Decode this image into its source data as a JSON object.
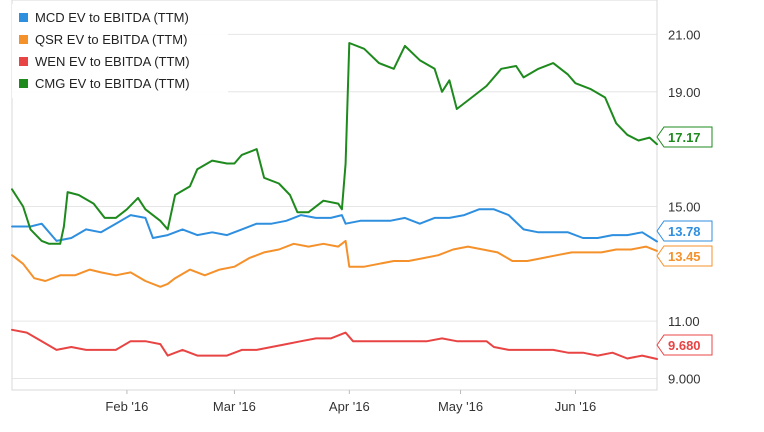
{
  "chart_data": {
    "type": "line",
    "ylim": [
      8.6,
      22.2
    ],
    "y_ticks": [
      "21.00",
      "19.00",
      "15.00",
      "11.00",
      "9.000"
    ],
    "y_tick_values": [
      21,
      19,
      15,
      11,
      9
    ],
    "grid": "horizontal",
    "x_ticks": [
      {
        "label": "Feb '16",
        "day": 31
      },
      {
        "label": "Mar '16",
        "day": 60
      },
      {
        "label": "Apr '16",
        "day": 91
      },
      {
        "label": "May '16",
        "day": 121
      },
      {
        "label": "Jun '16",
        "day": 152
      }
    ],
    "xlim_days": [
      0,
      174
    ],
    "legend_position": "top-left",
    "series": [
      {
        "name": "MCD EV to EBITDA (TTM)",
        "color": "#2f8fdf",
        "end_label": "13.78",
        "points": [
          [
            0,
            14.3
          ],
          [
            5,
            14.3
          ],
          [
            8,
            14.4
          ],
          [
            12,
            13.8
          ],
          [
            16,
            13.9
          ],
          [
            20,
            14.2
          ],
          [
            24,
            14.1
          ],
          [
            28,
            14.4
          ],
          [
            32,
            14.7
          ],
          [
            36,
            14.6
          ],
          [
            38,
            13.9
          ],
          [
            42,
            14.0
          ],
          [
            46,
            14.2
          ],
          [
            50,
            14.0
          ],
          [
            54,
            14.1
          ],
          [
            58,
            14.0
          ],
          [
            62,
            14.2
          ],
          [
            66,
            14.4
          ],
          [
            70,
            14.4
          ],
          [
            74,
            14.5
          ],
          [
            78,
            14.7
          ],
          [
            82,
            14.6
          ],
          [
            86,
            14.6
          ],
          [
            89,
            14.7
          ],
          [
            90,
            14.4
          ],
          [
            94,
            14.5
          ],
          [
            98,
            14.5
          ],
          [
            102,
            14.5
          ],
          [
            106,
            14.6
          ],
          [
            110,
            14.4
          ],
          [
            114,
            14.6
          ],
          [
            118,
            14.6
          ],
          [
            122,
            14.7
          ],
          [
            126,
            14.9
          ],
          [
            130,
            14.9
          ],
          [
            134,
            14.7
          ],
          [
            138,
            14.2
          ],
          [
            142,
            14.1
          ],
          [
            146,
            14.1
          ],
          [
            150,
            14.1
          ],
          [
            154,
            13.9
          ],
          [
            158,
            13.9
          ],
          [
            162,
            14.0
          ],
          [
            166,
            14.0
          ],
          [
            170,
            14.1
          ],
          [
            174,
            13.78
          ]
        ]
      },
      {
        "name": "QSR EV to EBITDA (TTM)",
        "color": "#f5912b",
        "end_label": "13.45",
        "points": [
          [
            0,
            13.3
          ],
          [
            3,
            13.0
          ],
          [
            6,
            12.5
          ],
          [
            9,
            12.4
          ],
          [
            13,
            12.6
          ],
          [
            17,
            12.6
          ],
          [
            21,
            12.8
          ],
          [
            24,
            12.7
          ],
          [
            28,
            12.6
          ],
          [
            32,
            12.7
          ],
          [
            36,
            12.4
          ],
          [
            40,
            12.2
          ],
          [
            42,
            12.3
          ],
          [
            44,
            12.5
          ],
          [
            48,
            12.8
          ],
          [
            52,
            12.6
          ],
          [
            56,
            12.8
          ],
          [
            60,
            12.9
          ],
          [
            64,
            13.2
          ],
          [
            68,
            13.4
          ],
          [
            72,
            13.5
          ],
          [
            76,
            13.7
          ],
          [
            80,
            13.6
          ],
          [
            84,
            13.7
          ],
          [
            88,
            13.6
          ],
          [
            90,
            13.8
          ],
          [
            91,
            12.9
          ],
          [
            95,
            12.9
          ],
          [
            99,
            13.0
          ],
          [
            103,
            13.1
          ],
          [
            107,
            13.1
          ],
          [
            111,
            13.2
          ],
          [
            115,
            13.3
          ],
          [
            119,
            13.5
          ],
          [
            123,
            13.6
          ],
          [
            127,
            13.5
          ],
          [
            131,
            13.4
          ],
          [
            135,
            13.1
          ],
          [
            139,
            13.1
          ],
          [
            143,
            13.2
          ],
          [
            147,
            13.3
          ],
          [
            151,
            13.4
          ],
          [
            155,
            13.4
          ],
          [
            159,
            13.4
          ],
          [
            163,
            13.5
          ],
          [
            167,
            13.5
          ],
          [
            171,
            13.6
          ],
          [
            174,
            13.45
          ]
        ]
      },
      {
        "name": "WEN EV to EBITDA (TTM)",
        "color": "#e84444",
        "end_label": "9.680",
        "points": [
          [
            0,
            10.7
          ],
          [
            4,
            10.6
          ],
          [
            8,
            10.3
          ],
          [
            12,
            10.0
          ],
          [
            16,
            10.1
          ],
          [
            20,
            10.0
          ],
          [
            24,
            10.0
          ],
          [
            28,
            10.0
          ],
          [
            32,
            10.3
          ],
          [
            36,
            10.3
          ],
          [
            40,
            10.2
          ],
          [
            42,
            9.8
          ],
          [
            46,
            10.0
          ],
          [
            50,
            9.8
          ],
          [
            54,
            9.8
          ],
          [
            58,
            9.8
          ],
          [
            62,
            10.0
          ],
          [
            66,
            10.0
          ],
          [
            70,
            10.1
          ],
          [
            74,
            10.2
          ],
          [
            78,
            10.3
          ],
          [
            82,
            10.4
          ],
          [
            86,
            10.4
          ],
          [
            90,
            10.6
          ],
          [
            92,
            10.3
          ],
          [
            96,
            10.3
          ],
          [
            100,
            10.3
          ],
          [
            104,
            10.3
          ],
          [
            108,
            10.3
          ],
          [
            112,
            10.3
          ],
          [
            116,
            10.4
          ],
          [
            120,
            10.3
          ],
          [
            124,
            10.3
          ],
          [
            128,
            10.3
          ],
          [
            130,
            10.1
          ],
          [
            134,
            10.0
          ],
          [
            138,
            10.0
          ],
          [
            142,
            10.0
          ],
          [
            146,
            10.0
          ],
          [
            150,
            9.9
          ],
          [
            154,
            9.9
          ],
          [
            158,
            9.8
          ],
          [
            162,
            9.9
          ],
          [
            166,
            9.7
          ],
          [
            170,
            9.8
          ],
          [
            174,
            9.68
          ]
        ]
      },
      {
        "name": "CMG EV to EBITDA (TTM)",
        "color": "#1e8a1e",
        "end_label": "17.17",
        "points": [
          [
            0,
            15.6
          ],
          [
            3,
            15.0
          ],
          [
            5,
            14.2
          ],
          [
            8,
            13.8
          ],
          [
            10,
            13.7
          ],
          [
            13,
            13.7
          ],
          [
            14,
            14.3
          ],
          [
            15,
            15.5
          ],
          [
            18,
            15.4
          ],
          [
            22,
            15.1
          ],
          [
            25,
            14.6
          ],
          [
            28,
            14.6
          ],
          [
            31,
            14.9
          ],
          [
            34,
            15.3
          ],
          [
            36,
            14.9
          ],
          [
            40,
            14.5
          ],
          [
            42,
            14.2
          ],
          [
            44,
            15.4
          ],
          [
            48,
            15.7
          ],
          [
            50,
            16.3
          ],
          [
            54,
            16.6
          ],
          [
            58,
            16.5
          ],
          [
            60,
            16.5
          ],
          [
            62,
            16.8
          ],
          [
            66,
            17.0
          ],
          [
            68,
            16.0
          ],
          [
            72,
            15.8
          ],
          [
            75,
            15.4
          ],
          [
            77,
            14.8
          ],
          [
            80,
            14.8
          ],
          [
            84,
            15.2
          ],
          [
            88,
            15.1
          ],
          [
            89,
            14.9
          ],
          [
            90,
            16.5
          ],
          [
            91,
            20.7
          ],
          [
            95,
            20.5
          ],
          [
            99,
            20.0
          ],
          [
            103,
            19.8
          ],
          [
            106,
            20.6
          ],
          [
            110,
            20.1
          ],
          [
            114,
            19.8
          ],
          [
            116,
            19.0
          ],
          [
            118,
            19.4
          ],
          [
            120,
            18.4
          ],
          [
            124,
            18.8
          ],
          [
            128,
            19.2
          ],
          [
            132,
            19.8
          ],
          [
            136,
            19.9
          ],
          [
            138,
            19.5
          ],
          [
            142,
            19.8
          ],
          [
            146,
            20.0
          ],
          [
            150,
            19.6
          ],
          [
            152,
            19.3
          ],
          [
            156,
            19.1
          ],
          [
            160,
            18.8
          ],
          [
            163,
            17.9
          ],
          [
            166,
            17.5
          ],
          [
            169,
            17.3
          ],
          [
            172,
            17.4
          ],
          [
            174,
            17.17
          ]
        ]
      }
    ]
  }
}
